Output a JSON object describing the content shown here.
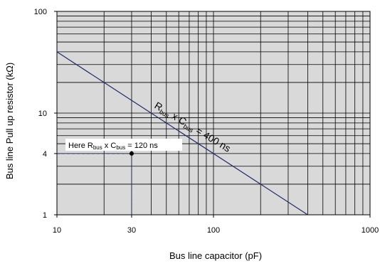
{
  "chart_data": {
    "type": "line",
    "x_scale": "log",
    "y_scale": "log",
    "xlim": [
      10,
      1000
    ],
    "ylim": [
      1,
      100
    ],
    "grid": true,
    "legend": "none",
    "xlabel": "Bus line capacitor (pF)",
    "ylabel": "Bus line Pull up resistor (kΩ)",
    "x_ticks": [
      {
        "value": 10,
        "label": "10"
      },
      {
        "value": 30,
        "label": "30"
      },
      {
        "value": 100,
        "label": "100"
      },
      {
        "value": 1000,
        "label": "1000"
      }
    ],
    "y_ticks": [
      {
        "value": 1,
        "label": "1"
      },
      {
        "value": 4,
        "label": "4"
      },
      {
        "value": 10,
        "label": "10"
      },
      {
        "value": 100,
        "label": "100"
      }
    ],
    "series": [
      {
        "name": "",
        "x": [
          10,
          400
        ],
        "y": [
          40,
          1
        ],
        "color": "#1f2a6b"
      }
    ],
    "line_label": {
      "main": "R",
      "sub1": "bus",
      "mid": " x C",
      "sub2": "bus",
      "tail": " = 400 ns"
    },
    "point": {
      "x": 30,
      "y": 4,
      "label": {
        "main": "Here R",
        "sub1": "bus",
        "mid": " x C",
        "sub2": "bus",
        "tail": " = 120 ns"
      }
    },
    "colors": {
      "plot_bg": "#d9d9d9",
      "grid": "#000000",
      "line": "#1f2a6b",
      "guide": "#1f2a6b"
    }
  }
}
